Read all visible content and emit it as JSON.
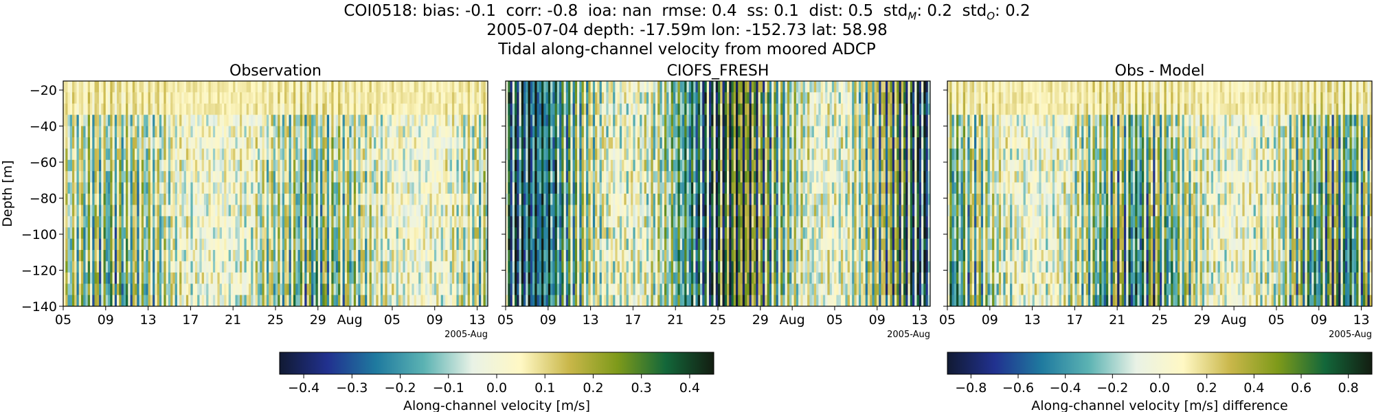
{
  "header": {
    "stats": [
      {
        "text": "COI0518: bias: -0.1"
      },
      {
        "text": "corr: -0.8"
      },
      {
        "text": "ioa: nan"
      },
      {
        "text": "rmse: 0.4"
      },
      {
        "text": "ss: 0.1"
      },
      {
        "text": "dist: 0.5"
      },
      {
        "label": "std",
        "sub": "M",
        "value": ": 0.2"
      },
      {
        "label": "std",
        "sub": "O",
        "value": ": 0.2"
      }
    ],
    "line2": "2005-07-04 depth: -17.59m lon: -152.73 lat: 58.98",
    "line3": "Tidal along-channel velocity from moored ADCP"
  },
  "chart_data": [
    {
      "type": "heatmap",
      "title": "Observation",
      "ylabel": "Depth [m]",
      "ylim": [
        -140,
        -15
      ],
      "yticks": [
        -20,
        -40,
        -60,
        -80,
        -100,
        -120,
        -140
      ],
      "xlim": [
        "2005-07-05",
        "2005-08-14"
      ],
      "xticks": [
        {
          "label": "05",
          "date": "2005-07-05"
        },
        {
          "label": "09",
          "date": "2005-07-09"
        },
        {
          "label": "13",
          "date": "2005-07-13"
        },
        {
          "label": "17",
          "date": "2005-07-17"
        },
        {
          "label": "21",
          "date": "2005-07-21"
        },
        {
          "label": "25",
          "date": "2005-07-25"
        },
        {
          "label": "29",
          "date": "2005-07-29"
        },
        {
          "label": "Aug",
          "date": "2005-08-01"
        },
        {
          "label": "05",
          "date": "2005-08-05"
        },
        {
          "label": "09",
          "date": "2005-08-09"
        },
        {
          "label": "13",
          "date": "2005-08-13"
        }
      ],
      "xoffset_label": "2005-Aug",
      "colormap": "delta",
      "clim": [
        -0.45,
        0.45
      ]
    },
    {
      "type": "heatmap",
      "title": "CIOFS_FRESH",
      "ylim": [
        -140,
        -15
      ],
      "xlim": [
        "2005-07-05",
        "2005-08-14"
      ],
      "xticks": [
        {
          "label": "05",
          "date": "2005-07-05"
        },
        {
          "label": "09",
          "date": "2005-07-09"
        },
        {
          "label": "13",
          "date": "2005-07-13"
        },
        {
          "label": "17",
          "date": "2005-07-17"
        },
        {
          "label": "21",
          "date": "2005-07-21"
        },
        {
          "label": "25",
          "date": "2005-07-25"
        },
        {
          "label": "29",
          "date": "2005-07-29"
        },
        {
          "label": "Aug",
          "date": "2005-08-01"
        },
        {
          "label": "05",
          "date": "2005-08-05"
        },
        {
          "label": "09",
          "date": "2005-08-09"
        },
        {
          "label": "13",
          "date": "2005-08-13"
        }
      ],
      "xoffset_label": "2005-Aug",
      "colormap": "delta",
      "clim": [
        -0.45,
        0.45
      ]
    },
    {
      "type": "heatmap",
      "title": "Obs - Model",
      "ylim": [
        -140,
        -15
      ],
      "xlim": [
        "2005-07-05",
        "2005-08-14"
      ],
      "xticks": [
        {
          "label": "05",
          "date": "2005-07-05"
        },
        {
          "label": "09",
          "date": "2005-07-09"
        },
        {
          "label": "13",
          "date": "2005-07-13"
        },
        {
          "label": "17",
          "date": "2005-07-17"
        },
        {
          "label": "21",
          "date": "2005-07-21"
        },
        {
          "label": "25",
          "date": "2005-07-25"
        },
        {
          "label": "29",
          "date": "2005-07-29"
        },
        {
          "label": "Aug",
          "date": "2005-08-01"
        },
        {
          "label": "05",
          "date": "2005-08-05"
        },
        {
          "label": "09",
          "date": "2005-08-09"
        },
        {
          "label": "13",
          "date": "2005-08-13"
        }
      ],
      "xoffset_label": "2005-Aug",
      "colormap": "delta",
      "clim": [
        -0.9,
        0.9
      ]
    }
  ],
  "colorbars": [
    {
      "label": "Along-channel velocity [m/s]",
      "range": [
        -0.45,
        0.45
      ],
      "ticks": [
        -0.4,
        -0.3,
        -0.2,
        -0.1,
        0.0,
        0.1,
        0.2,
        0.3,
        0.4
      ],
      "tick_labels": [
        "−0.4",
        "−0.3",
        "−0.2",
        "−0.1",
        "0.0",
        "0.1",
        "0.2",
        "0.3",
        "0.4"
      ]
    },
    {
      "label": "Along-channel velocity [m/s] difference",
      "range": [
        -0.9,
        0.9
      ],
      "ticks": [
        -0.8,
        -0.6,
        -0.4,
        -0.2,
        0.0,
        0.2,
        0.4,
        0.6,
        0.8
      ],
      "tick_labels": [
        "−0.8",
        "−0.6",
        "−0.4",
        "−0.2",
        "0.0",
        "0.2",
        "0.4",
        "0.6",
        "0.8"
      ]
    }
  ],
  "colormap_stops": [
    "#111a33",
    "#21318f",
    "#1f7a9f",
    "#5cb3b3",
    "#e9f2e6",
    "#fff8c4",
    "#c9b74a",
    "#7e9a1a",
    "#13673a",
    "#131d11"
  ],
  "ytick_labels": [
    "−20",
    "−40",
    "−60",
    "−80",
    "−100",
    "−120",
    "−140"
  ]
}
